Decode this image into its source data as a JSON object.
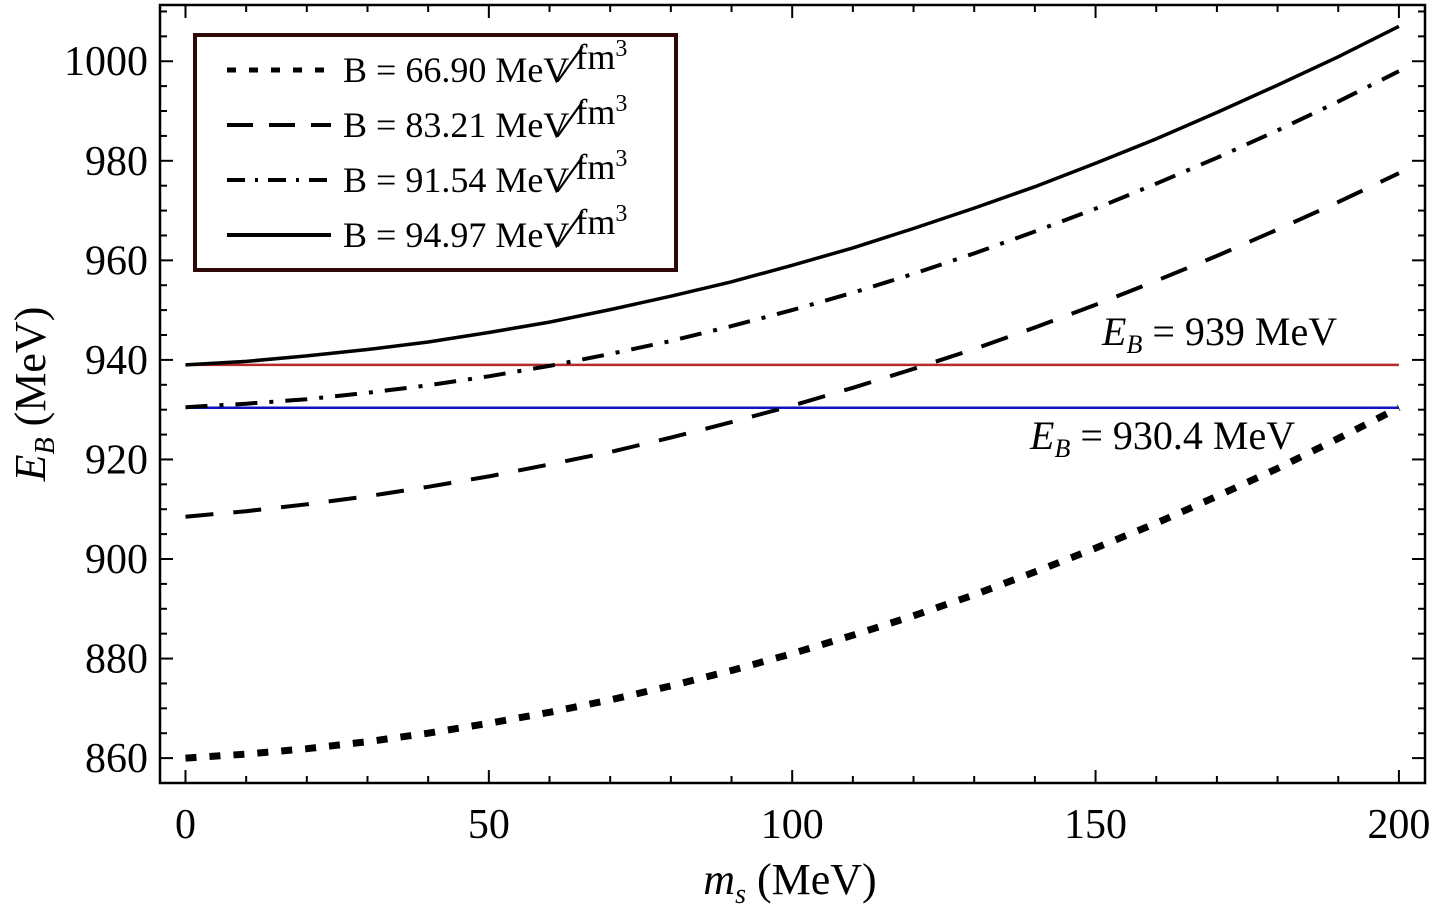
{
  "figure": {
    "background": "#ffffff",
    "frame_color": "#000000",
    "legend_border_color": "#2d0909"
  },
  "chart_data": {
    "type": "line",
    "title": "",
    "xlabel": "m_s (MeV)",
    "ylabel": "E_B (MeV)",
    "xlim": [
      -4.2,
      204.3
    ],
    "ylim": [
      855,
      1011.3
    ],
    "grid": false,
    "legend_position": "top-left",
    "x_ticks": [
      {
        "v": 0,
        "label": "0"
      },
      {
        "v": 50,
        "label": "50"
      },
      {
        "v": 100,
        "label": "100"
      },
      {
        "v": 150,
        "label": "150"
      },
      {
        "v": 200,
        "label": "200"
      }
    ],
    "x_minor_step": 10,
    "y_ticks": [
      {
        "v": 860,
        "label": "860"
      },
      {
        "v": 880,
        "label": "880"
      },
      {
        "v": 900,
        "label": "900"
      },
      {
        "v": 920,
        "label": "920"
      },
      {
        "v": 940,
        "label": "940"
      },
      {
        "v": 960,
        "label": "960"
      },
      {
        "v": 980,
        "label": "980"
      },
      {
        "v": 1000,
        "label": "1000"
      }
    ],
    "y_minor_step": 5,
    "x": [
      0,
      10,
      20,
      30,
      40,
      50,
      60,
      70,
      80,
      90,
      100,
      110,
      120,
      130,
      140,
      150,
      160,
      170,
      180,
      190,
      200
    ],
    "series": [
      {
        "name": "B = 66.90 MeV/fm^3",
        "dash_style": "dotted",
        "color": "#000000",
        "width": 7,
        "values": [
          860.0,
          860.8,
          861.9,
          863.3,
          865.0,
          867.0,
          869.2,
          871.7,
          874.5,
          877.6,
          881.0,
          884.7,
          888.6,
          892.8,
          897.4,
          902.2,
          907.2,
          912.6,
          918.2,
          924.2,
          930.4
        ]
      },
      {
        "name": "B = 83.21 MeV/fm^3",
        "dash_style": "dashed",
        "color": "#000000",
        "width": 4,
        "values": [
          908.5,
          909.6,
          911.0,
          912.6,
          914.5,
          916.6,
          919.0,
          921.5,
          924.4,
          927.5,
          930.8,
          934.4,
          938.2,
          942.2,
          946.5,
          951.1,
          955.9,
          960.9,
          966.2,
          971.7,
          977.5
        ]
      },
      {
        "name": "B = 91.54 MeV/fm^3",
        "dash_style": "dashdot",
        "color": "#000000",
        "width": 4,
        "values": [
          930.5,
          931.2,
          932.1,
          933.4,
          934.9,
          936.7,
          938.8,
          941.2,
          943.8,
          946.8,
          950.0,
          953.5,
          957.3,
          961.4,
          965.8,
          970.4,
          975.4,
          980.6,
          986.1,
          991.9,
          998.0
        ]
      },
      {
        "name": "B = 94.97 MeV/fm^3",
        "dash_style": "solid",
        "color": "#000000",
        "width": 3.5,
        "values": [
          939.0,
          939.7,
          940.8,
          942.1,
          943.6,
          945.5,
          947.6,
          950.1,
          952.8,
          955.7,
          959.0,
          962.5,
          966.4,
          970.5,
          974.8,
          979.5,
          984.4,
          989.7,
          995.2,
          1000.9,
          1007.0
        ]
      }
    ],
    "reference_lines": [
      {
        "value": 939,
        "color": "#b52b2b",
        "width": 2.5,
        "label": "E_B = 939 MeV"
      },
      {
        "value": 930.4,
        "color": "#1111c4",
        "width": 2.5,
        "label": "E_B = 930.4 MeV"
      }
    ]
  },
  "legend": {
    "slash": "∕",
    "entries": [
      {
        "label": "B = 66.90 MeV",
        "unit": "fm",
        "power": "3"
      },
      {
        "label": "B = 83.21 MeV",
        "unit": "fm",
        "power": "3"
      },
      {
        "label": "B = 91.54 MeV",
        "unit": "fm",
        "power": "3"
      },
      {
        "label": "B = 94.97 MeV",
        "unit": "fm",
        "power": "3"
      }
    ]
  },
  "annotations": {
    "line_939": {
      "variable": "E",
      "subscript": "B",
      "rest": " = 939 MeV"
    },
    "line_930": {
      "variable": "E",
      "subscript": "B",
      "rest": " = 930.4 MeV"
    }
  },
  "axes": {
    "x_label": {
      "variable": "m",
      "subscript": "s",
      "rest": " (MeV)"
    },
    "y_label": {
      "variable": "E",
      "subscript": "B",
      "rest": " (MeV)"
    }
  }
}
